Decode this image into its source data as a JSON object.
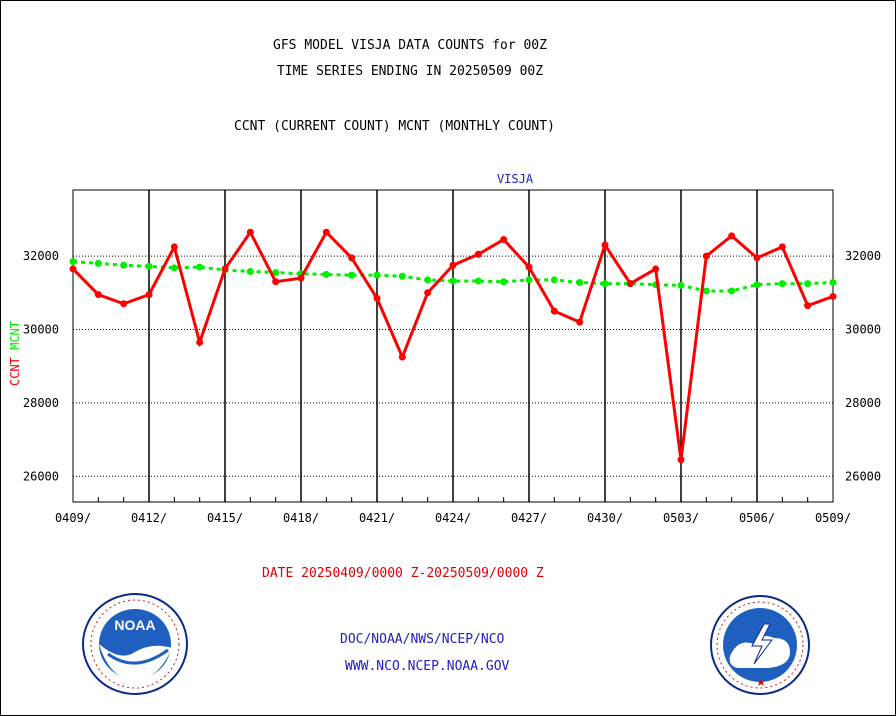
{
  "title_line1": "GFS MODEL VISJA DATA COUNTS for 00Z",
  "title_line2": "TIME SERIES ENDING IN 20250509 00Z",
  "subtitle": "CCNT (CURRENT COUNT) MCNT (MONTHLY COUNT)",
  "footer_date": "DATE 20250409/0000 Z-20250509/0000 Z",
  "links": [
    "DOC/NOAA/NWS/NCEP/NCO",
    "WWW.NCO.NCEP.NOAA.GOV"
  ],
  "logos": {
    "noaa": {
      "icon": "noaa-logo",
      "text": "NOAA"
    },
    "nws": {
      "icon": "nws-logo"
    }
  },
  "chart_data": {
    "type": "line",
    "title": "VISJA",
    "ylabel_parts": [
      {
        "text": "CCNT",
        "color": "#ff0000"
      },
      {
        "text": "MCNT",
        "color": "#00ee00"
      }
    ],
    "x_ticks": [
      "0409/",
      "0412/",
      "0415/",
      "0418/",
      "0421/",
      "0424/",
      "0427/",
      "0430/",
      "0503/",
      "0506/",
      "0509/"
    ],
    "y_ticks": [
      26000,
      28000,
      30000,
      32000
    ],
    "xlim": [
      0,
      30
    ],
    "ylim": [
      25300,
      33800
    ],
    "grid": true,
    "series": [
      {
        "name": "CCNT",
        "color": "#ff0000",
        "style": "solid",
        "values": [
          31650,
          30950,
          30700,
          30950,
          32250,
          29650,
          31650,
          32650,
          31300,
          31400,
          32650,
          31950,
          30850,
          29250,
          31000,
          31750,
          32050,
          32450,
          31700,
          30500,
          30200,
          32300,
          31250,
          31650,
          26450,
          32000,
          32550,
          31950,
          32250,
          30650,
          30900
        ]
      },
      {
        "name": "MCNT",
        "color": "#00ee00",
        "style": "dashed",
        "values": [
          31850,
          31800,
          31750,
          31720,
          31680,
          31700,
          31620,
          31580,
          31550,
          31520,
          31500,
          31480,
          31480,
          31450,
          31350,
          31320,
          31320,
          31300,
          31350,
          31350,
          31280,
          31250,
          31250,
          31220,
          31200,
          31050,
          31050,
          31220,
          31250,
          31250,
          31280
        ]
      }
    ]
  }
}
